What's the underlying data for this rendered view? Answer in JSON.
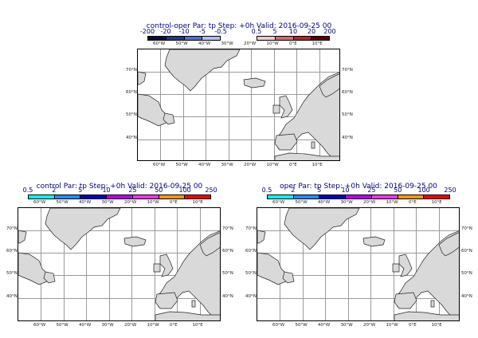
{
  "panels": [
    {
      "title": "control-oper Par: tp Step: +0h Valid: 2016-09-25 00",
      "colorbar_labels": [
        "-200",
        "-20",
        "-10",
        "-5",
        "-0.5",
        "0.5",
        "5",
        "10",
        "20",
        "200"
      ],
      "colorbar_colors": [
        "#0b0b38",
        "#1f3a8c",
        "#4f6fc8",
        "#aebfe8",
        "#ffffff",
        "#f2c9c9",
        "#d46b6b",
        "#b52626",
        "#600000"
      ]
    },
    {
      "title": "control Par: tp Step: +0h Valid: 2016-09-25 00",
      "colorbar_labels": [
        "0.5",
        "2",
        "5",
        "10",
        "25",
        "50",
        "100",
        "250"
      ],
      "colorbar_colors": [
        "#00ffff",
        "#1f8fff",
        "#0000cc",
        "#bb00ff",
        "#ff33ff",
        "#ff9900",
        "#ff0000"
      ]
    },
    {
      "title": "oper Par: tp Step: +0h Valid: 2016-09-25 00",
      "colorbar_labels": [
        "0.5",
        "2",
        "5",
        "10",
        "25",
        "50",
        "100",
        "250"
      ],
      "colorbar_colors": [
        "#00ffff",
        "#1f8fff",
        "#0000cc",
        "#bb00ff",
        "#ff33ff",
        "#ff9900",
        "#ff0000"
      ]
    }
  ],
  "map_ticks": {
    "lon": [
      "60°W",
      "50°W",
      "40°W",
      "30°W",
      "20°W",
      "10°W",
      "0°E",
      "10°E"
    ],
    "lat": [
      "70°N",
      "60°N",
      "50°N",
      "40°N"
    ]
  },
  "colors": {
    "land": "#d9d9d9",
    "grid": "#9a9a9a",
    "title": "#00007a"
  }
}
